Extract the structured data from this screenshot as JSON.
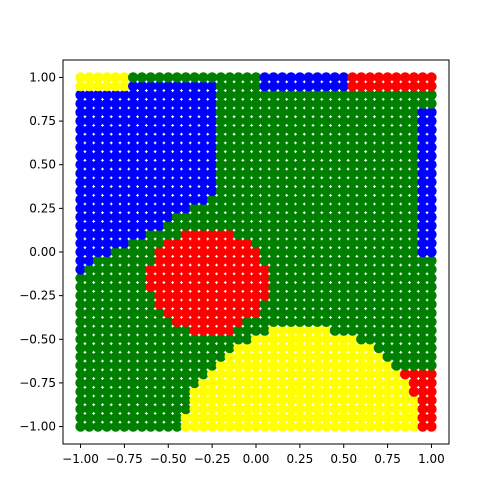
{
  "chart_data": {
    "type": "scatter",
    "title": "",
    "xlabel": "",
    "ylabel": "",
    "xlim": [
      -1.1,
      1.1
    ],
    "ylim": [
      -1.1,
      1.1
    ],
    "grid": false,
    "legend": "none",
    "xticks": [
      -1.0,
      -0.75,
      -0.5,
      -0.25,
      0.0,
      0.25,
      0.5,
      0.75,
      1.0
    ],
    "xtick_labels": [
      "−1.00",
      "−0.75",
      "−0.50",
      "−0.25",
      "0.00",
      "0.25",
      "0.50",
      "0.75",
      "1.00"
    ],
    "yticks": [
      -1.0,
      -0.75,
      -0.5,
      -0.25,
      0.0,
      0.25,
      0.5,
      0.75,
      1.0
    ],
    "ytick_labels": [
      "−1.00",
      "−0.75",
      "−0.50",
      "−0.25",
      "0.00",
      "0.25",
      "0.50",
      "0.75",
      "1.00"
    ],
    "grid_points": {
      "x_start": -1.0,
      "x_stop": 1.0,
      "y_start": -1.0,
      "y_stop": 1.0,
      "count_per_axis": 41
    },
    "class_colors": {
      "blue": "#0000ff",
      "green": "#008000",
      "red": "#ff0000",
      "yellow": "#ffff00"
    },
    "regions": {
      "red_blob": {
        "center": [
          -0.27,
          -0.17
        ],
        "radius_x": 0.34,
        "radius_y": 0.3
      },
      "yellow_dome": {
        "center": [
          0.27,
          -1.05
        ],
        "radius_x": 0.68,
        "radius_y": 0.62,
        "x_range": [
          -0.6,
          0.9
        ]
      },
      "blue_upper_left": {
        "x_range": [
          -1.0,
          -0.25
        ],
        "y_top": 0.95
      },
      "blue_right_edge": {
        "x_min": 0.95,
        "y_range": [
          0.0,
          0.85
        ]
      },
      "yellow_top_left": {
        "x_range": [
          -1.0,
          -0.75
        ],
        "y_min": 0.95
      },
      "red_top_right": {
        "x_min": 0.55,
        "y_min": 0.9
      },
      "red_bottom_right": {
        "x_min": 0.85,
        "y_max": -0.7
      }
    },
    "edge_color": "#000000"
  }
}
